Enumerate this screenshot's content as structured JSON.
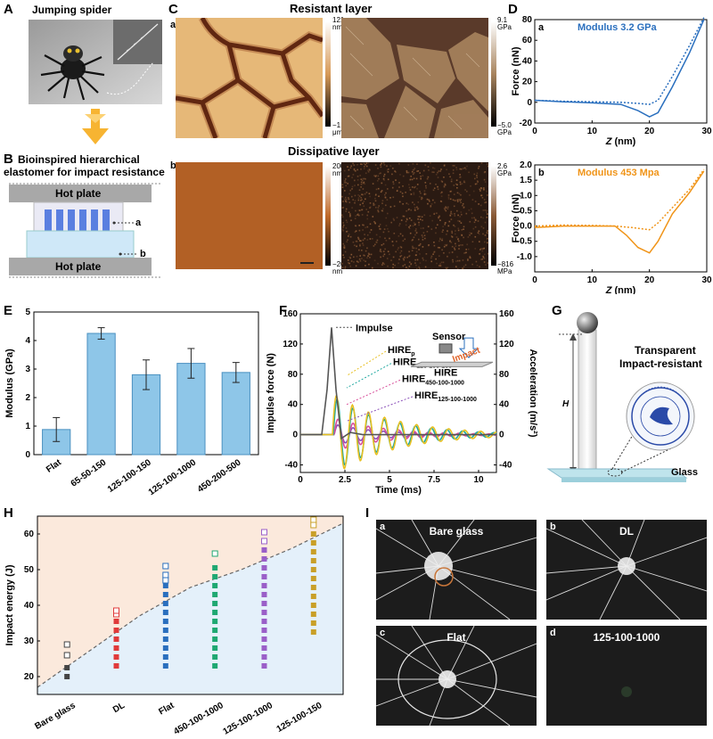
{
  "panels": {
    "A": {
      "label": "A",
      "title": "Jumping spider"
    },
    "B": {
      "label": "B",
      "title_line1": "Bioinspired hierarchical",
      "title_line2": "elastomer for impact resistance",
      "top_plate": "Hot plate",
      "bottom_plate": "Hot plate",
      "marker_a": "a",
      "marker_b": "b"
    },
    "C": {
      "label": "C",
      "top_title": "Resistant layer",
      "bottom_title": "Dissipative layer",
      "sub_a": "a",
      "sub_b": "b",
      "bar1_top": "121",
      "bar1_unit_top": "nm",
      "bar1_bottom": "−1.1",
      "bar1_unit_bottom": "μm",
      "bar2_top": "9.1",
      "bar2_unit_top": "GPa",
      "bar2_bottom": "−5.0",
      "bar2_unit_bottom": "GPa",
      "bar3_top": "200",
      "bar3_unit_top": "nm",
      "bar3_bottom": "−200",
      "bar3_unit_bottom": "nm",
      "bar4_top": "2.6",
      "bar4_unit_top": "GPa",
      "bar4_bottom": "−816",
      "bar4_unit_bottom": "MPa"
    },
    "D": {
      "label": "D"
    },
    "E": {
      "label": "E"
    },
    "F": {
      "label": "F"
    },
    "G": {
      "label": "G",
      "title_line1": "Transparent",
      "title_line2": "Impact-resistant",
      "height_label": "H",
      "glass_label": "Glass"
    },
    "H": {
      "label": "H"
    },
    "I": {
      "label": "I",
      "photos": [
        {
          "sub": "a",
          "title": "Bare glass"
        },
        {
          "sub": "b",
          "title": "DL"
        },
        {
          "sub": "c",
          "title": "Flat"
        },
        {
          "sub": "d",
          "title": "125-100-1000"
        }
      ]
    }
  },
  "chart_data": [
    {
      "id": "D-a",
      "type": "line",
      "sub": "a",
      "annotation": "Modulus 3.2 GPa",
      "xlabel": "Z (nm)",
      "ylabel": "Force (nN)",
      "xlim": [
        0,
        30
      ],
      "ylim": [
        -20,
        80
      ],
      "xticks": [
        0,
        10,
        20,
        30
      ],
      "yticks": [
        -20,
        0,
        20,
        40,
        60,
        80
      ],
      "color": "#2a6fbe",
      "series": [
        {
          "style": "solid",
          "points": [
            [
              0,
              2
            ],
            [
              5,
              0.5
            ],
            [
              10,
              -0.5
            ],
            [
              15,
              -2
            ],
            [
              18,
              -8
            ],
            [
              20,
              -14
            ],
            [
              21.5,
              -10
            ],
            [
              24,
              15
            ],
            [
              27,
              48
            ],
            [
              29.5,
              80
            ]
          ]
        },
        {
          "style": "dashed",
          "points": [
            [
              0,
              2
            ],
            [
              5,
              1
            ],
            [
              10,
              0.5
            ],
            [
              15,
              0
            ],
            [
              18,
              -1
            ],
            [
              20,
              -2
            ],
            [
              21.5,
              2
            ],
            [
              24,
              25
            ],
            [
              27,
              55
            ],
            [
              29.5,
              82
            ]
          ]
        }
      ]
    },
    {
      "id": "D-b",
      "type": "line",
      "sub": "b",
      "annotation": "Modulus 453 Mpa",
      "xlabel": "Z (nm)",
      "ylabel": "Force (nN)",
      "xlim": [
        0,
        30
      ],
      "ylim": [
        -1.5,
        2.0
      ],
      "xticks": [
        0,
        10,
        20,
        30
      ],
      "yticks": [
        -1.0,
        -0.5,
        0.0,
        0.5,
        1.0,
        1.5,
        2.0
      ],
      "color": "#f09418",
      "series": [
        {
          "style": "solid",
          "points": [
            [
              0,
              -0.05
            ],
            [
              5,
              0
            ],
            [
              10,
              0
            ],
            [
              14,
              0
            ],
            [
              16,
              -0.3
            ],
            [
              18,
              -0.7
            ],
            [
              20,
              -0.88
            ],
            [
              21.5,
              -0.5
            ],
            [
              24,
              0.4
            ],
            [
              27,
              1.1
            ],
            [
              29.5,
              1.8
            ]
          ]
        },
        {
          "style": "dashed",
          "points": [
            [
              0,
              0
            ],
            [
              5,
              0.03
            ],
            [
              10,
              0.02
            ],
            [
              14,
              0
            ],
            [
              17,
              -0.05
            ],
            [
              20,
              -0.12
            ],
            [
              21.5,
              0.1
            ],
            [
              24,
              0.6
            ],
            [
              27,
              1.2
            ],
            [
              29.5,
              1.85
            ]
          ]
        }
      ]
    },
    {
      "id": "E",
      "type": "bar",
      "categories": [
        "Flat",
        "65-50-150",
        "125-100-150",
        "125-100-1000",
        "450-200-500"
      ],
      "values": [
        0.88,
        4.25,
        2.8,
        3.2,
        2.88
      ],
      "errors": [
        0.42,
        0.2,
        0.52,
        0.52,
        0.35
      ],
      "xlabel": "",
      "ylabel": "Modulus (GPa)",
      "ylim": [
        0,
        5
      ],
      "yticks": [
        0,
        1,
        2,
        3,
        4,
        5
      ],
      "color": "#8ec6e8"
    },
    {
      "id": "F",
      "type": "line",
      "xlabel": "Time (ms)",
      "ylabel": "Impulse force (N)",
      "y2label": "Acceleration (m/s²)",
      "xlim": [
        0,
        11
      ],
      "ylim": [
        -50,
        160
      ],
      "xticks": [
        0,
        2.5,
        5,
        7.5,
        10
      ],
      "yticks": [
        -40,
        0,
        40,
        80,
        120,
        160
      ],
      "y2ticks": [
        -40,
        0,
        40,
        80,
        120,
        160
      ],
      "annotations": [
        "Impulse",
        "HIREp",
        "HIRE125-100-150",
        "HIRE450-100-1000",
        "HIRE125-100-1000",
        "Sensor",
        "Impact",
        "HIRE"
      ],
      "series": [
        {
          "name": "Impulse",
          "color": "#555555",
          "points": [
            [
              0,
              0
            ],
            [
              1.2,
              0
            ],
            [
              1.5,
              60
            ],
            [
              1.75,
              142
            ],
            [
              2.0,
              60
            ],
            [
              2.3,
              -5
            ],
            [
              2.8,
              3
            ],
            [
              3.5,
              0
            ],
            [
              11,
              0
            ]
          ]
        },
        {
          "name": "HIREp",
          "color": "#e8c022",
          "type": "osc",
          "amp": 55,
          "decay": 0.3,
          "period": 0.9,
          "start": 1.8
        },
        {
          "name": "HIRE125-100-150",
          "color": "#1fa8a0",
          "type": "osc",
          "amp": 50,
          "decay": 0.32,
          "period": 0.88,
          "start": 1.85
        },
        {
          "name": "HIRE450-100-1000",
          "color": "#d84d9a",
          "type": "osc",
          "amp": 22,
          "decay": 0.35,
          "period": 0.85,
          "start": 1.9
        },
        {
          "name": "HIRE125-100-1000",
          "color": "#8a4fb8",
          "type": "osc",
          "amp": 14,
          "decay": 0.4,
          "period": 0.85,
          "start": 1.9
        }
      ]
    },
    {
      "id": "H",
      "type": "scatter",
      "categories": [
        "Bare glass",
        "DL",
        "Flat",
        "450-100-1000",
        "125-100-1000",
        "125-100-150"
      ],
      "xlabel": "",
      "ylabel": "Impact energy (J)",
      "ylim": [
        15,
        65
      ],
      "yticks": [
        20,
        30,
        40,
        50,
        60
      ],
      "series": [
        {
          "color": "#444444",
          "filled": [
            20,
            22.5
          ],
          "open": [
            26,
            29
          ]
        },
        {
          "color": "#e03a3a",
          "filled": [
            23,
            25.5,
            28,
            30.5,
            33,
            35.5
          ],
          "open": [
            37.5,
            38.5
          ]
        },
        {
          "color": "#2a6fbe",
          "filled": [
            23,
            25.5,
            28,
            30.5,
            33,
            35.5,
            38,
            40.5,
            43,
            45.5
          ],
          "open": [
            47,
            48.5,
            51
          ]
        },
        {
          "color": "#1fa872",
          "filled": [
            23,
            25.5,
            28,
            30.5,
            33,
            35.5,
            38,
            40.5,
            43,
            45.5,
            48,
            50.5
          ],
          "open": [
            54.5
          ]
        },
        {
          "color": "#9a5fc8",
          "filled": [
            23,
            25.5,
            28,
            30.5,
            33,
            35.5,
            38,
            40.5,
            43,
            45.5,
            48,
            50.5,
            53,
            55.5
          ],
          "open": [
            58,
            60.5
          ]
        },
        {
          "color": "#c9a028",
          "filled": [
            32.5,
            35,
            37.5,
            40,
            42.5,
            45,
            47.5,
            50,
            52.5,
            55,
            57.5,
            60
          ],
          "open": [
            62.5,
            64
          ]
        }
      ],
      "boundary": [
        17,
        27,
        37,
        45,
        50,
        56,
        63
      ]
    }
  ]
}
